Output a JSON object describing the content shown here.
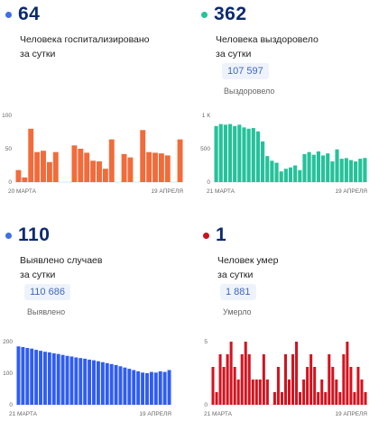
{
  "panels": [
    {
      "key": "hospitalized",
      "value": "64",
      "caption_lines": [
        "Человека госпитализировано",
        "за сутки"
      ],
      "badge": "",
      "badge_label": "",
      "color": "#f26b3a",
      "dot_color": "#3e6fe8"
    },
    {
      "key": "recovered",
      "value": "362",
      "caption_lines": [
        "Человека выздоровело",
        "за сутки"
      ],
      "badge": "107 597",
      "badge_label": "Выздоровело",
      "color": "#25c29a",
      "dot_color": "#25c29a"
    },
    {
      "key": "cases",
      "value": "110",
      "caption_lines": [
        "Выявлено случаев",
        "за сутки"
      ],
      "badge": "110 686",
      "badge_label": "Выявлено",
      "color": "#2f5cf5",
      "dot_color": "#3e6fe8"
    },
    {
      "key": "deaths",
      "value": "1",
      "caption_lines": [
        "Человек умер",
        "за сутки"
      ],
      "badge": "1 881",
      "badge_label": "Умерло",
      "color": "#d4121e",
      "dot_color": "#c8121e"
    }
  ],
  "chart_data": [
    {
      "type": "bar",
      "ylim": [
        0,
        100
      ],
      "yticks": [
        "0",
        "50",
        "100"
      ],
      "x_start_label": "20 МАРТА",
      "x_end_label": "19 АПРЕЛЯ",
      "values": [
        18,
        7,
        80,
        45,
        47,
        30,
        45,
        0,
        0,
        55,
        50,
        44,
        32,
        31,
        20,
        64,
        0,
        42,
        37,
        0,
        78,
        45,
        44,
        43,
        40,
        0,
        64
      ]
    },
    {
      "type": "bar",
      "ylim": [
        0,
        1000
      ],
      "yticks": [
        "0",
        "500",
        "1 К"
      ],
      "x_start_label": "21 МАРТА",
      "x_end_label": "19 АПРЕЛЯ",
      "values": [
        840,
        870,
        860,
        870,
        840,
        860,
        820,
        800,
        810,
        760,
        610,
        390,
        320,
        290,
        160,
        200,
        220,
        250,
        180,
        420,
        450,
        410,
        460,
        400,
        430,
        310,
        490,
        350,
        360,
        330,
        310,
        350,
        362
      ]
    },
    {
      "type": "bar",
      "ylim": [
        0,
        200
      ],
      "yticks": [
        "0",
        "100",
        "200"
      ],
      "x_start_label": "21 МАРТА",
      "x_end_label": "19 АПРЕЛЯ",
      "values": [
        185,
        183,
        180,
        178,
        174,
        171,
        168,
        166,
        163,
        161,
        158,
        155,
        153,
        150,
        148,
        146,
        143,
        141,
        138,
        135,
        132,
        129,
        126,
        122,
        118,
        114,
        110,
        106,
        102,
        100,
        104,
        102,
        106,
        104,
        110
      ]
    },
    {
      "type": "bar",
      "ylim": [
        0,
        5
      ],
      "yticks": [
        "0",
        "5"
      ],
      "x_start_label": "21 МАРТА",
      "x_end_label": "19 АПРЕЛЯ",
      "values": [
        3,
        1,
        4,
        3,
        4,
        5,
        3,
        2,
        4,
        5,
        4,
        2,
        2,
        2,
        4,
        2,
        0,
        1,
        3,
        1,
        4,
        2,
        4,
        5,
        1,
        2,
        3,
        4,
        3,
        1,
        2,
        1,
        4,
        3,
        2,
        1,
        4,
        5,
        3,
        1,
        3,
        2,
        1
      ]
    }
  ]
}
